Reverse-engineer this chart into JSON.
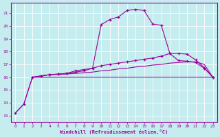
{
  "xlabel": "Windchill (Refroidissement éolien,°C)",
  "xlim": [
    -0.5,
    23.5
  ],
  "ylim": [
    12.5,
    21.8
  ],
  "yticks": [
    13,
    14,
    15,
    16,
    17,
    18,
    19,
    20,
    21
  ],
  "xticks": [
    0,
    1,
    2,
    3,
    4,
    5,
    6,
    7,
    8,
    9,
    10,
    11,
    12,
    13,
    14,
    15,
    16,
    17,
    18,
    19,
    20,
    21,
    22,
    23
  ],
  "background_color": "#c5ecee",
  "line_color": "#990099",
  "grid_color": "#b0dde0",
  "series": {
    "line_main_x": [
      0,
      1,
      2,
      3,
      4,
      5,
      6,
      7,
      8,
      9,
      10,
      11,
      12,
      13,
      14,
      15,
      16,
      17,
      18,
      19,
      20,
      21,
      22,
      23
    ],
    "line_main_y": [
      13.2,
      13.9,
      16.0,
      16.1,
      16.2,
      16.25,
      16.3,
      16.4,
      16.5,
      16.7,
      20.1,
      20.5,
      20.7,
      21.2,
      21.3,
      21.2,
      20.15,
      20.05,
      17.85,
      17.3,
      17.25,
      17.15,
      16.7,
      16.0
    ],
    "line_flat_x": [
      0,
      1,
      2,
      3,
      4,
      5,
      6,
      7,
      8,
      9,
      10,
      11,
      12,
      13,
      14,
      15,
      16,
      17,
      18,
      19,
      20,
      21,
      22,
      23
    ],
    "line_flat_y": [
      13.2,
      13.9,
      16.0,
      16.0,
      16.0,
      16.0,
      16.0,
      16.0,
      16.0,
      16.0,
      16.0,
      16.0,
      16.0,
      16.0,
      16.0,
      16.0,
      16.0,
      16.0,
      16.0,
      16.0,
      16.0,
      16.0,
      16.0,
      16.0
    ],
    "line_mid_x": [
      2,
      3,
      4,
      5,
      6,
      7,
      8,
      9,
      10,
      11,
      12,
      13,
      14,
      15,
      16,
      17,
      18,
      19,
      20,
      21,
      22,
      23
    ],
    "line_mid_y": [
      16.0,
      16.1,
      16.2,
      16.25,
      16.3,
      16.5,
      16.6,
      16.7,
      16.9,
      17.0,
      17.1,
      17.2,
      17.3,
      17.4,
      17.5,
      17.65,
      17.85,
      17.85,
      17.8,
      17.35,
      16.75,
      16.0
    ],
    "line_low_x": [
      2,
      3,
      4,
      5,
      6,
      7,
      8,
      9,
      10,
      11,
      12,
      13,
      14,
      15,
      16,
      17,
      18,
      19,
      20,
      21,
      22,
      23
    ],
    "line_low_y": [
      16.0,
      16.1,
      16.2,
      16.22,
      16.25,
      16.3,
      16.35,
      16.4,
      16.5,
      16.55,
      16.65,
      16.7,
      16.8,
      16.85,
      16.95,
      17.0,
      17.1,
      17.15,
      17.2,
      17.2,
      17.0,
      16.0
    ]
  }
}
